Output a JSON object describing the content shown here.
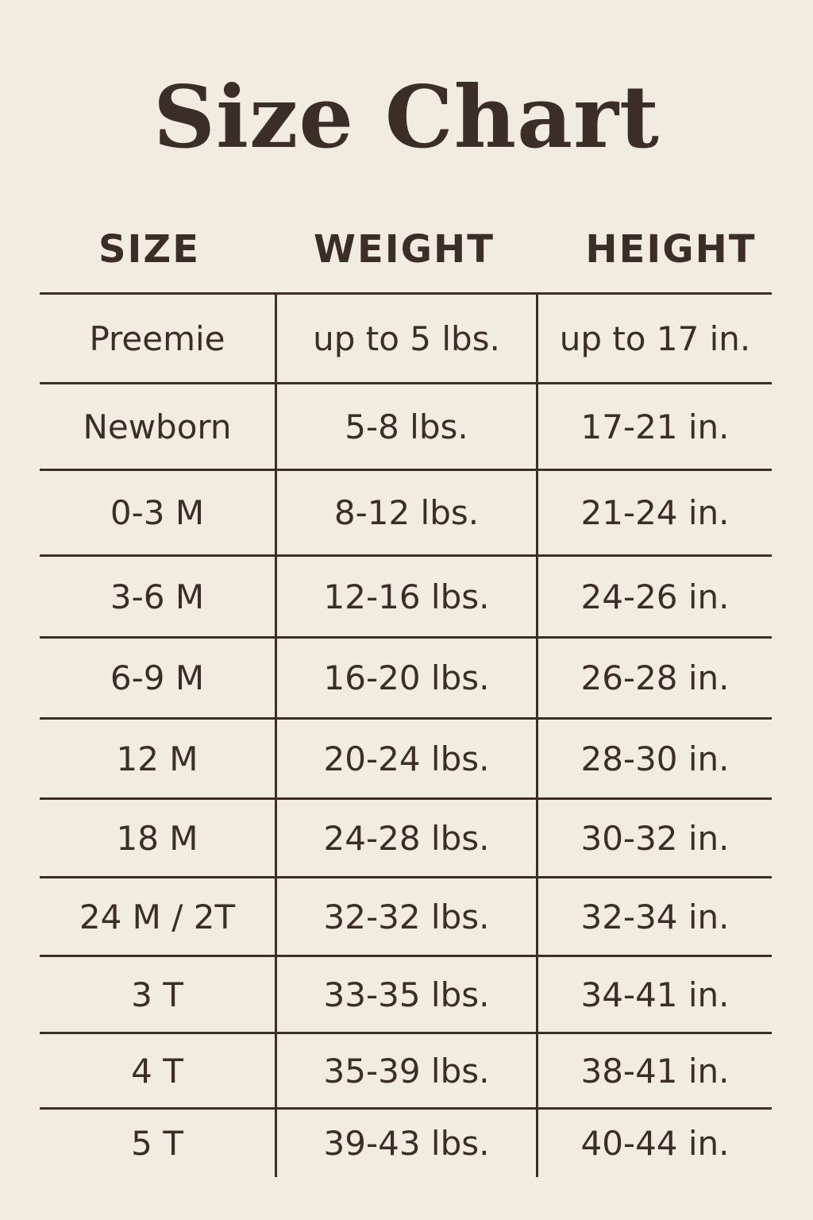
{
  "title": "Size Chart",
  "headers": [
    "SIZE",
    "WEIGHT",
    "HEIGHT"
  ],
  "rows": [
    [
      "Preemie",
      "up to 5 lbs.",
      "up to 17 in."
    ],
    [
      "Newborn",
      "5-8 lbs.",
      "17-21 in."
    ],
    [
      "0-3 M",
      "8-12 lbs.",
      "21-24 in."
    ],
    [
      "3-6 M",
      "12-16 lbs.",
      "24-26 in."
    ],
    [
      "6-9 M",
      "16-20 lbs.",
      "26-28 in."
    ],
    [
      "12 M",
      "20-24 lbs.",
      "28-30 in."
    ],
    [
      "18 M",
      "24-28 lbs.",
      "30-32 in."
    ],
    [
      "24 M / 2T",
      "32-32 lbs.",
      "32-34 in."
    ],
    [
      "3 T",
      "33-35 lbs.",
      "34-41 in."
    ],
    [
      "4 T",
      "35-39 lbs.",
      "38-41 in."
    ],
    [
      "5 T",
      "39-43 lbs.",
      "40-44 in."
    ]
  ],
  "colors": {
    "background": "#f2ebe0",
    "text": "#3a2e26"
  }
}
